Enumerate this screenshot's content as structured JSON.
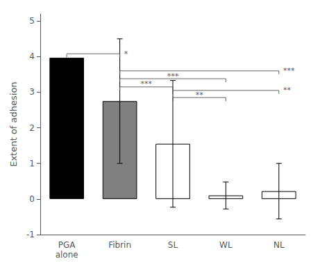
{
  "chart_data": {
    "type": "bar",
    "categories": [
      "PGA\nalone",
      "Fibrin",
      "SL",
      "WL",
      "NL"
    ],
    "values": [
      3.97,
      2.75,
      1.55,
      0.1,
      0.22
    ],
    "errors": [
      0.0,
      1.75,
      1.78,
      0.38,
      0.78
    ],
    "colors": [
      "#000000",
      "#808080",
      "#ffffff",
      "#ffffff",
      "#ffffff"
    ],
    "ylabel": "Extent of adhesion",
    "ylim": [
      -1,
      5.2
    ],
    "yticks": [
      -1,
      0,
      1,
      2,
      3,
      4,
      5
    ],
    "grid": false,
    "annotations": [
      {
        "from": "PGA\nalone",
        "to": "Fibrin",
        "y": 4.08,
        "label": "*",
        "label_side": "right",
        "color": "#555555"
      },
      {
        "from": "Fibrin",
        "to": "SL",
        "y": 3.15,
        "label": "***",
        "label_side": "mid",
        "color": "#555555"
      },
      {
        "from": "Fibrin",
        "to": "WL",
        "y": 3.38,
        "label": "***",
        "label_side": "mid",
        "color": "#555555"
      },
      {
        "from": "Fibrin",
        "to": "NL",
        "y": 3.6,
        "label": "***",
        "label_side": "right",
        "color": "#555555"
      },
      {
        "from": "SL",
        "to": "WL",
        "y": 2.85,
        "label": "**",
        "label_side": "mid",
        "color": "#555555"
      },
      {
        "from": "SL",
        "to": "NL",
        "y": 3.05,
        "label": "**",
        "label_side": "right",
        "color": "#555555"
      }
    ]
  }
}
